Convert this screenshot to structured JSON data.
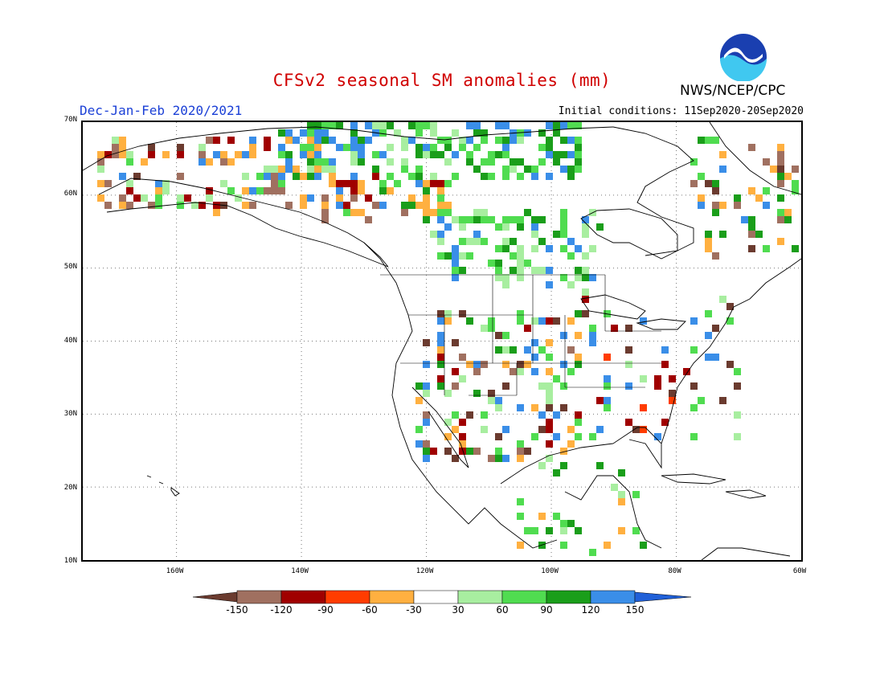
{
  "title": "CFSv2 seasonal SM anomalies (mm)",
  "season": "Dec-Jan-Feb 2020/2021",
  "initial_conditions": "Initial conditions: 11Sep2020-20Sep2020",
  "agency": "NWS/NCEP/CPC",
  "logo_text": "NOAA",
  "lat_labels": [
    "70N",
    "60N",
    "50N",
    "40N",
    "30N",
    "20N",
    "10N"
  ],
  "lon_labels": [
    "160W",
    "140W",
    "120W",
    "100W",
    "80W",
    "60W"
  ],
  "colorbar": {
    "labels": [
      "-150",
      "-120",
      "-90",
      "-60",
      "-30",
      "30",
      "60",
      "90",
      "120",
      "150"
    ],
    "colors": [
      "#6b3b2f",
      "#a07060",
      "#a00000",
      "#ff3c00",
      "#ffb040",
      "#ffffff",
      "#a8eea0",
      "#50dc50",
      "#1a9e1a",
      "#3a8ee8",
      "#2060d8"
    ]
  },
  "extent": {
    "lon_min": -175,
    "lon_max": -60,
    "lat_min": 10,
    "lat_max": 70
  }
}
